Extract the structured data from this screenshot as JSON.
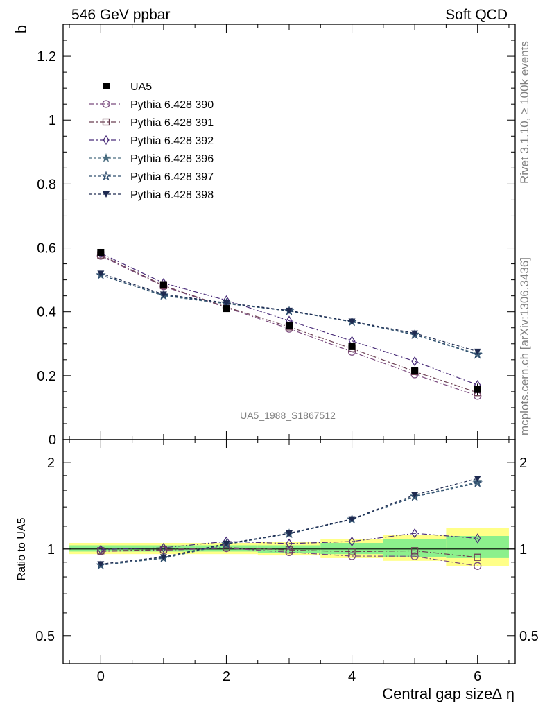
{
  "header": {
    "left": "546 GeV ppbar",
    "right": "Soft QCD"
  },
  "side_text": {
    "top": "Rivet 3.1.10, ≥ 100k events",
    "bottom": "mcplots.cern.ch [arXiv:1306.3436]"
  },
  "analysis_id": "UA5_1988_S1867512",
  "chart_data": [
    {
      "type": "line",
      "panel": "main",
      "ylabel": "b",
      "xlim": [
        -0.6,
        6.6
      ],
      "ylim": [
        0,
        1.3
      ],
      "yticks": [
        "0",
        "0.2",
        "0.4",
        "0.6",
        "0.8",
        "1",
        "1.2"
      ],
      "legend_position": "top-left",
      "x": [
        0,
        1,
        2,
        3,
        4,
        5,
        6
      ],
      "data_series": {
        "name": "UA5",
        "color": "#000000",
        "marker": "filled-square",
        "values": [
          0.586,
          0.485,
          0.41,
          0.356,
          0.291,
          0.216,
          0.157
        ],
        "errors": [
          0.01,
          0.008,
          0.008,
          0.008,
          0.01,
          0.012,
          0.018
        ]
      },
      "series": [
        {
          "name": "Pythia 6.428 390",
          "color": "#7a4a7e",
          "marker": "open-circle",
          "dash": "dashdot",
          "values": [
            0.575,
            0.48,
            0.413,
            0.347,
            0.275,
            0.204,
            0.137
          ]
        },
        {
          "name": "Pythia 6.428 391",
          "color": "#6b3f52",
          "marker": "open-square",
          "dash": "dashdot",
          "values": [
            0.578,
            0.482,
            0.415,
            0.353,
            0.285,
            0.213,
            0.147
          ]
        },
        {
          "name": "Pythia 6.428 392",
          "color": "#4b2e7a",
          "marker": "open-diamond",
          "dash": "dashdot",
          "values": [
            0.583,
            0.49,
            0.436,
            0.372,
            0.309,
            0.245,
            0.171
          ]
        },
        {
          "name": "Pythia 6.428 396",
          "color": "#4a6d80",
          "marker": "filled-star",
          "dash": "dashed",
          "values": [
            0.515,
            0.45,
            0.425,
            0.403,
            0.368,
            0.33,
            0.268
          ]
        },
        {
          "name": "Pythia 6.428 397",
          "color": "#2e4d6e",
          "marker": "open-star",
          "dash": "dashed",
          "values": [
            0.515,
            0.452,
            0.427,
            0.402,
            0.369,
            0.328,
            0.266
          ]
        },
        {
          "name": "Pythia 6.428 398",
          "color": "#1e2a50",
          "marker": "filled-triangle-down",
          "dash": "dashed",
          "values": [
            0.52,
            0.455,
            0.428,
            0.404,
            0.37,
            0.333,
            0.276
          ]
        }
      ]
    },
    {
      "type": "line",
      "panel": "ratio",
      "ylabel": "Ratio to UA5",
      "xlabel": "Central gap size∆ η",
      "ylim_log": [
        0.4,
        2.4
      ],
      "yticks": [
        "0.5",
        "1",
        "2"
      ],
      "x": [
        0,
        1,
        2,
        3,
        4,
        5,
        6
      ],
      "xticks": [
        "0",
        "2",
        "4",
        "6"
      ],
      "band_yellow": [
        [
          0.96,
          1.05
        ],
        [
          0.96,
          1.05
        ],
        [
          0.96,
          1.05
        ],
        [
          0.95,
          1.06
        ],
        [
          0.93,
          1.08
        ],
        [
          0.91,
          1.12
        ],
        [
          0.87,
          1.18
        ]
      ],
      "band_green": [
        [
          0.98,
          1.03
        ],
        [
          0.98,
          1.03
        ],
        [
          0.98,
          1.03
        ],
        [
          0.97,
          1.03
        ],
        [
          0.96,
          1.05
        ],
        [
          0.94,
          1.08
        ],
        [
          0.93,
          1.11
        ]
      ],
      "series": [
        {
          "name": "Pythia 6.428 390",
          "values": [
            0.981,
            0.99,
            1.007,
            0.975,
            0.945,
            0.944,
            0.873
          ]
        },
        {
          "name": "Pythia 6.428 391",
          "values": [
            0.986,
            0.994,
            1.012,
            0.992,
            0.979,
            0.986,
            0.936
          ]
        },
        {
          "name": "Pythia 6.428 392",
          "values": [
            0.995,
            1.01,
            1.063,
            1.045,
            1.062,
            1.134,
            1.089
          ]
        },
        {
          "name": "Pythia 6.428 396",
          "values": [
            0.879,
            0.928,
            1.037,
            1.132,
            1.265,
            1.528,
            1.707
          ]
        },
        {
          "name": "Pythia 6.428 397",
          "values": [
            0.879,
            0.932,
            1.041,
            1.129,
            1.268,
            1.519,
            1.694
          ]
        },
        {
          "name": "Pythia 6.428 398",
          "values": [
            0.887,
            0.938,
            1.044,
            1.135,
            1.271,
            1.542,
            1.758
          ]
        }
      ]
    }
  ]
}
